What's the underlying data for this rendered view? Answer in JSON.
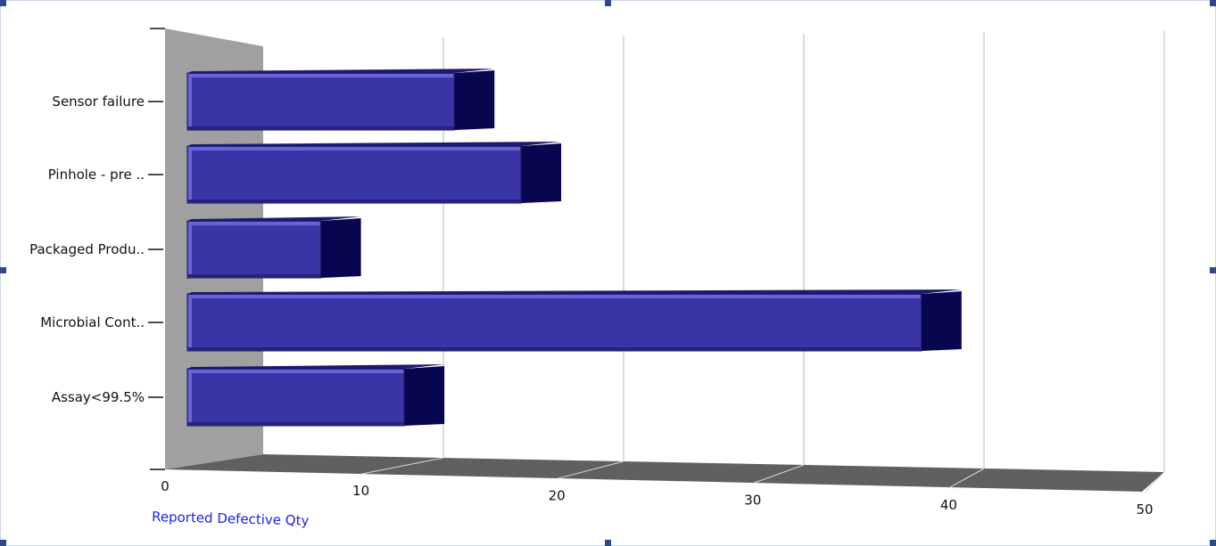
{
  "colors": {
    "bar_face": "#3935a7",
    "bar_highlight": "#6a63d8",
    "bar_side": "#07064e",
    "bar_top": "#1c1a6e",
    "back_wall": "#a0a0a0",
    "floor": "#606060",
    "gridline": "#c4c4c4",
    "axis_title": "#1a22e0",
    "handle": "#2b4a86"
  },
  "chart_data": {
    "type": "bar",
    "orientation": "horizontal",
    "style": "3d",
    "categories": [
      "Sensor failure",
      "Pinhole - pre ..",
      "Packaged Produ..",
      "Microbial Cont..",
      "Assay<99.5%"
    ],
    "values": [
      16,
      20,
      8,
      44,
      13
    ],
    "xlabel": "Reported Defective Qty",
    "xlim": [
      0,
      50
    ],
    "xticks": [
      0,
      10,
      20,
      30,
      40,
      50
    ],
    "grid": true,
    "legend": "none"
  }
}
